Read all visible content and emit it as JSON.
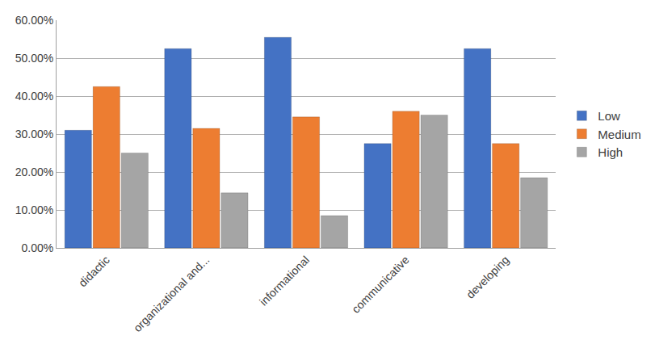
{
  "chart_data": {
    "type": "bar",
    "categories": [
      "didactic",
      "organizational and...",
      "informational",
      "communicative",
      "developing"
    ],
    "series": [
      {
        "name": "Low",
        "color": "#4472c4",
        "values": [
          31,
          52.5,
          55.5,
          27.5,
          52.5
        ]
      },
      {
        "name": "Medium",
        "color": "#ed7d31",
        "values": [
          42.5,
          31.5,
          34.5,
          36,
          27.5
        ]
      },
      {
        "name": "High",
        "color": "#a5a5a5",
        "values": [
          25,
          14.5,
          8.5,
          35,
          18.5
        ]
      }
    ],
    "ylim": [
      0,
      60
    ],
    "yticks": [
      {
        "value": 0,
        "label": "0.00%"
      },
      {
        "value": 10,
        "label": "10.00%"
      },
      {
        "value": 20,
        "label": "20.00%"
      },
      {
        "value": 30,
        "label": "30.00%"
      },
      {
        "value": 40,
        "label": "40.00%"
      },
      {
        "value": 50,
        "label": "50.00%"
      },
      {
        "value": 60,
        "label": "60.00%"
      }
    ],
    "grid": true,
    "legend": "right"
  }
}
